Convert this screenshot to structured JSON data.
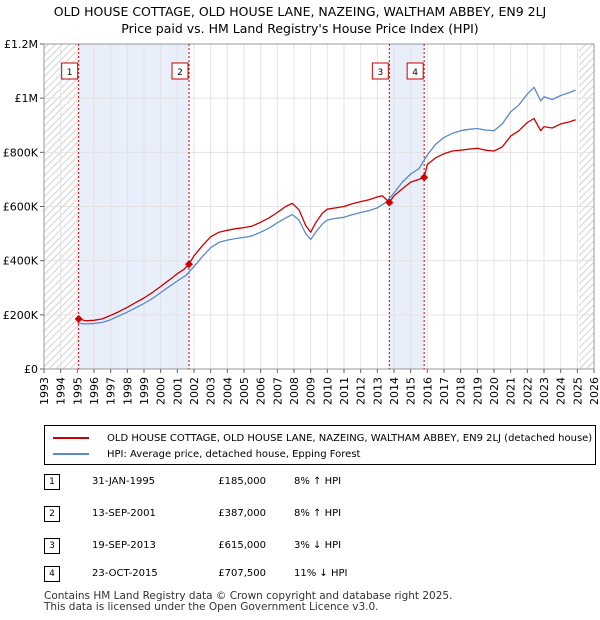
{
  "chart_data": {
    "type": "line",
    "title": "OLD HOUSE COTTAGE, OLD HOUSE LANE, NAZEING, WALTHAM ABBEY, EN9 2LJ",
    "subtitle": "Price paid vs. HM Land Registry's House Price Index (HPI)",
    "xlim": [
      1993,
      2026
    ],
    "ylim": [
      0,
      1200000
    ],
    "x_ticks": [
      "1993",
      "1994",
      "1995",
      "1996",
      "1997",
      "1998",
      "1999",
      "2000",
      "2001",
      "2002",
      "2003",
      "2004",
      "2005",
      "2006",
      "2007",
      "2008",
      "2009",
      "2010",
      "2011",
      "2012",
      "2013",
      "2014",
      "2015",
      "2016",
      "2017",
      "2018",
      "2019",
      "2020",
      "2021",
      "2022",
      "2023",
      "2024",
      "2025",
      "2026"
    ],
    "y_ticks": [
      {
        "value": 0,
        "label": "£0"
      },
      {
        "value": 200000,
        "label": "£200K"
      },
      {
        "value": 400000,
        "label": "£400K"
      },
      {
        "value": 600000,
        "label": "£600K"
      },
      {
        "value": 800000,
        "label": "£800K"
      },
      {
        "value": 1000000,
        "label": "£1M"
      },
      {
        "value": 1200000,
        "label": "£1.2M"
      }
    ],
    "hatched_ranges": [
      [
        1993,
        1995.08
      ],
      [
        2025.1,
        2026
      ]
    ],
    "shaded_ranges": [
      [
        1995.08,
        2001.7
      ],
      [
        2013.72,
        2015.81
      ]
    ],
    "colors": {
      "property": "#cc0000",
      "hpi": "#5b8ac6",
      "shade": "#e8eefa",
      "marker": "#cc0000"
    },
    "series": [
      {
        "name": "OLD HOUSE COTTAGE, OLD HOUSE LANE, NAZEING, WALTHAM ABBEY, EN9 2LJ (detached house)",
        "x": [
          1995.08,
          1995.5,
          1996,
          1996.5,
          1997,
          1997.5,
          1998,
          1998.5,
          1999,
          1999.5,
          2000,
          2000.5,
          2001,
          2001.4,
          2001.7,
          2002,
          2002.5,
          2003,
          2003.5,
          2004,
          2004.5,
          2005,
          2005.5,
          2006,
          2006.5,
          2007,
          2007.5,
          2007.9,
          2008.3,
          2008.7,
          2009,
          2009.3,
          2009.7,
          2010,
          2010.5,
          2011,
          2011.5,
          2012,
          2012.5,
          2013,
          2013.3,
          2013.72,
          2014,
          2014.5,
          2015,
          2015.5,
          2015.81,
          2016,
          2016.5,
          2017,
          2017.5,
          2018,
          2018.5,
          2019,
          2019.5,
          2020,
          2020.5,
          2021,
          2021.5,
          2022,
          2022.4,
          2022.8,
          2023,
          2023.5,
          2024,
          2024.5,
          2024.9
        ],
        "y": [
          185000,
          178000,
          180000,
          185000,
          198000,
          212000,
          228000,
          245000,
          262000,
          282000,
          305000,
          328000,
          352000,
          368000,
          387000,
          418000,
          455000,
          488000,
          505000,
          512000,
          518000,
          522000,
          528000,
          542000,
          558000,
          578000,
          600000,
          612000,
          588000,
          530000,
          505000,
          540000,
          575000,
          590000,
          595000,
          600000,
          610000,
          618000,
          625000,
          635000,
          640000,
          615000,
          640000,
          665000,
          690000,
          700000,
          707500,
          755000,
          780000,
          795000,
          805000,
          808000,
          812000,
          815000,
          808000,
          805000,
          820000,
          860000,
          880000,
          910000,
          925000,
          880000,
          895000,
          890000,
          905000,
          912000,
          920000
        ]
      },
      {
        "name": "HPI: Average price, detached house, Epping Forest",
        "x": [
          1995,
          1995.5,
          1996,
          1996.5,
          1997,
          1997.5,
          1998,
          1998.5,
          1999,
          1999.5,
          2000,
          2000.5,
          2001,
          2001.5,
          2002,
          2002.5,
          2003,
          2003.5,
          2004,
          2004.5,
          2005,
          2005.5,
          2006,
          2006.5,
          2007,
          2007.5,
          2007.9,
          2008.3,
          2008.7,
          2009,
          2009.3,
          2009.7,
          2010,
          2010.5,
          2011,
          2011.5,
          2012,
          2012.5,
          2013,
          2013.5,
          2014,
          2014.5,
          2015,
          2015.5,
          2016,
          2016.5,
          2017,
          2017.5,
          2018,
          2018.5,
          2019,
          2019.5,
          2020,
          2020.5,
          2021,
          2021.5,
          2022,
          2022.4,
          2022.8,
          2023,
          2023.5,
          2024,
          2024.5,
          2024.9
        ],
        "y": [
          170000,
          166000,
          168000,
          172000,
          182000,
          196000,
          210000,
          226000,
          242000,
          260000,
          282000,
          304000,
          325000,
          345000,
          378000,
          415000,
          448000,
          468000,
          476000,
          482000,
          486000,
          492000,
          505000,
          520000,
          540000,
          558000,
          570000,
          550000,
          500000,
          478000,
          505000,
          535000,
          550000,
          556000,
          560000,
          570000,
          578000,
          585000,
          595000,
          615000,
          650000,
          690000,
          720000,
          740000,
          790000,
          830000,
          855000,
          870000,
          880000,
          885000,
          888000,
          882000,
          880000,
          905000,
          950000,
          975000,
          1015000,
          1040000,
          990000,
          1005000,
          995000,
          1010000,
          1020000,
          1030000
        ]
      }
    ],
    "transactions": [
      {
        "id": "1",
        "x": 1995.08,
        "value": 185000,
        "label": "1",
        "date": "31-JAN-1995",
        "price": "£185,000",
        "hpi": "8% ↑ HPI"
      },
      {
        "id": "2",
        "x": 2001.7,
        "value": 387000,
        "label": "2",
        "date": "13-SEP-2001",
        "price": "£387,000",
        "hpi": "8% ↑ HPI"
      },
      {
        "id": "3",
        "x": 2013.72,
        "value": 615000,
        "label": "3",
        "date": "19-SEP-2013",
        "price": "£615,000",
        "hpi": "3% ↓ HPI"
      },
      {
        "id": "4",
        "x": 2015.81,
        "value": 707500,
        "label": "4",
        "date": "23-OCT-2015",
        "price": "£707,500",
        "hpi": "11% ↓ HPI"
      }
    ]
  },
  "legend": {
    "property_label": "OLD HOUSE COTTAGE, OLD HOUSE LANE, NAZEING, WALTHAM ABBEY, EN9 2LJ (detached house)",
    "hpi_label": "HPI: Average price, detached house, Epping Forest"
  },
  "footer": {
    "line1": "Contains HM Land Registry data © Crown copyright and database right 2025.",
    "line2": "This data is licensed under the Open Government Licence v3.0."
  }
}
